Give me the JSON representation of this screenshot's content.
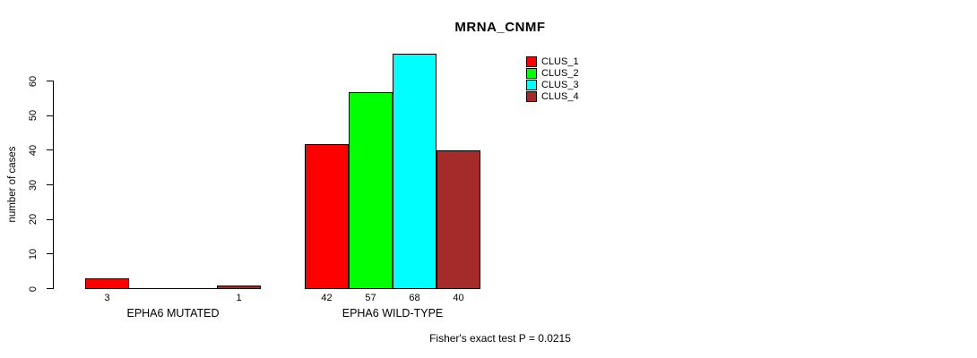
{
  "title": "MRNA_CNMF",
  "y_axis": {
    "label": "number of cases"
  },
  "footer": "Fisher's exact test P = 0.0215",
  "legend": {
    "items": [
      {
        "label": "CLUS_1",
        "color": "#FF0000"
      },
      {
        "label": "CLUS_2",
        "color": "#00FF00"
      },
      {
        "label": "CLUS_3",
        "color": "#00FFFF"
      },
      {
        "label": "CLUS_4",
        "color": "#A52A2A"
      }
    ]
  },
  "chart_data": {
    "type": "bar",
    "title": "MRNA_CNMF",
    "xlabel": "",
    "ylabel": "number of cases",
    "ylim": [
      0,
      68
    ],
    "yticks": [
      0,
      10,
      20,
      30,
      40,
      50,
      60
    ],
    "categories": [
      "EPHA6 MUTATED",
      "EPHA6 WILD-TYPE"
    ],
    "series": [
      {
        "name": "CLUS_1",
        "color": "#FF0000",
        "values": [
          3,
          42
        ]
      },
      {
        "name": "CLUS_2",
        "color": "#00FF00",
        "values": [
          0,
          57
        ]
      },
      {
        "name": "CLUS_3",
        "color": "#00FFFF",
        "values": [
          0,
          68
        ]
      },
      {
        "name": "CLUS_4",
        "color": "#A52A2A",
        "values": [
          1,
          40
        ]
      }
    ],
    "bar_value_labels": {
      "shown": "nonzero_only",
      "values": [
        [
          3,
          null,
          null,
          1
        ],
        [
          42,
          57,
          68,
          40
        ]
      ]
    },
    "annotation": "Fisher's exact test P = 0.0215",
    "legend_position": "top-right",
    "grid": false
  }
}
